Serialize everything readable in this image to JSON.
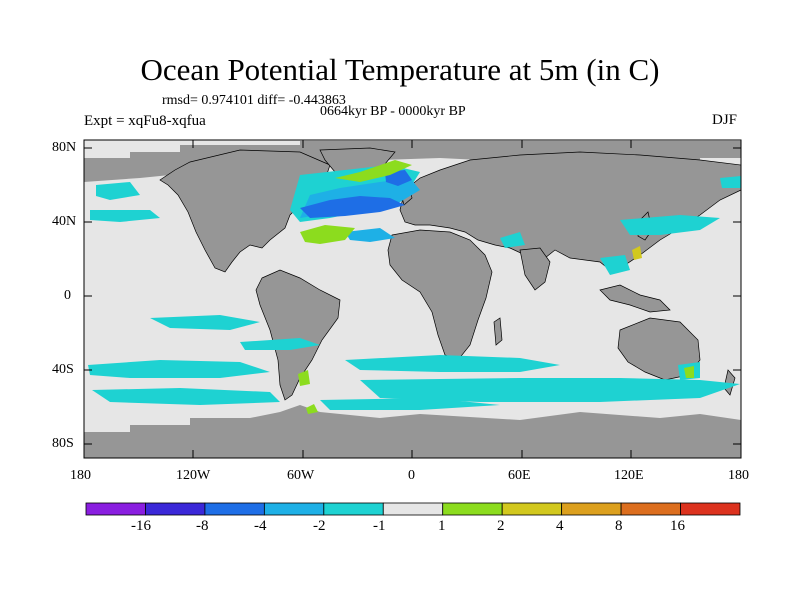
{
  "title": "Ocean Potential Temperature at 5m (in C)",
  "stats_line": "rmsd= 0.974101 diff= -0.443863",
  "period": "0664kyr BP - 0000kyr BP",
  "experiment": "Expt = xqFu8-xqfua",
  "season": "DJF",
  "lat_labels": [
    "80N",
    "40N",
    "0",
    "40S",
    "80S"
  ],
  "lon_labels": [
    "180",
    "120W",
    "60W",
    "0",
    "60E",
    "120E",
    "180"
  ],
  "colorbar": {
    "labels": [
      "-16",
      "-8",
      "-4",
      "-2",
      "-1",
      "1",
      "2",
      "4",
      "8",
      "16"
    ],
    "colors": [
      "#8a1ee0",
      "#3b28d8",
      "#1e6ee6",
      "#1eb0e6",
      "#1ed2d2",
      "#e6e6e6",
      "#8cdc1e",
      "#d2c81e",
      "#dca01e",
      "#dc6e1e",
      "#dc321e"
    ]
  },
  "colors": {
    "land": "#969696",
    "ocean_neutral": "#e6e6e6",
    "cool_1": "#1ed2d2",
    "cool_2": "#1eb0e6",
    "cool_3": "#1e6ee6",
    "warm_1": "#8cdc1e",
    "warm_2": "#d2c81e"
  }
}
